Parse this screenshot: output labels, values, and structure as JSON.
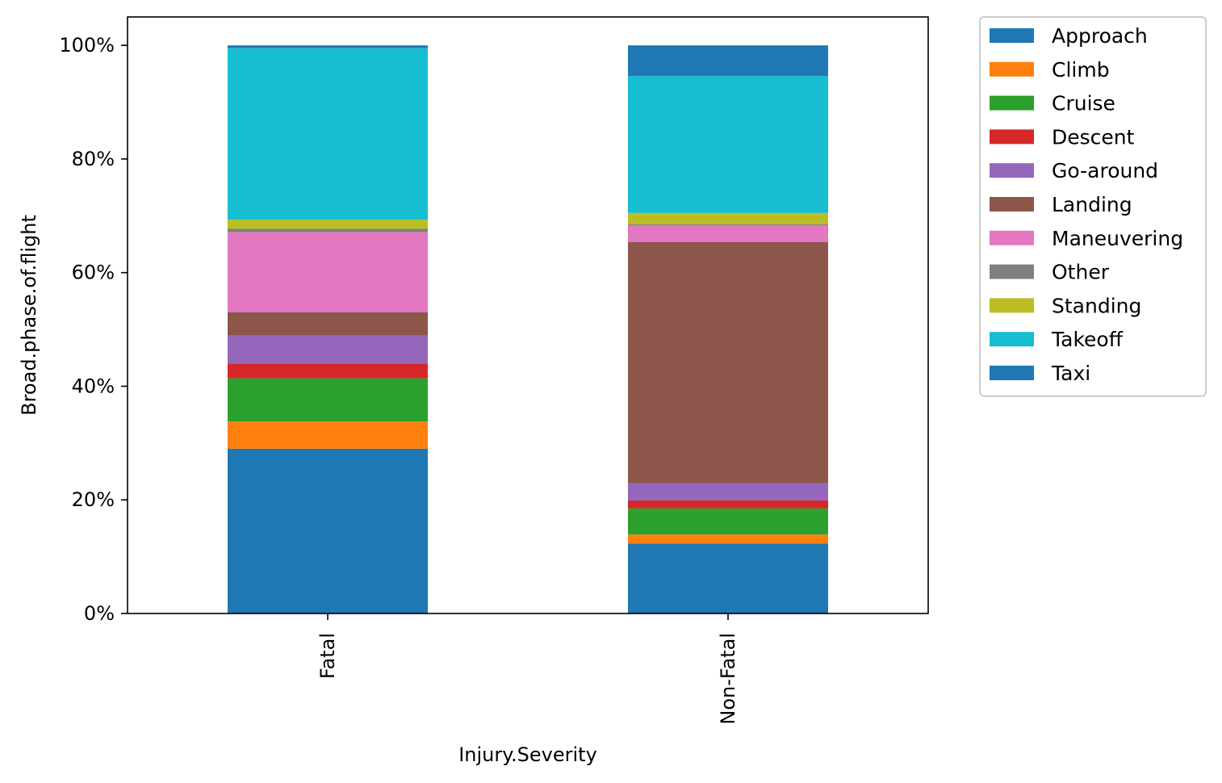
{
  "chart_data": {
    "type": "bar",
    "stacked": true,
    "orientation": "vertical",
    "xlabel": "Injury.Severity",
    "ylabel": "Broad.phase.of.flight",
    "categories": [
      "Fatal",
      "Non-Fatal"
    ],
    "y_axis": {
      "ylim": [
        0,
        105
      ],
      "ticks": [
        0,
        20,
        40,
        60,
        80,
        100
      ],
      "tick_suffix": "%"
    },
    "grid": false,
    "legend_position": "outside-top-right",
    "series": [
      {
        "name": "Approach",
        "color": "#1f77b4",
        "values": [
          29.0,
          12.3
        ]
      },
      {
        "name": "Climb",
        "color": "#ff7f0e",
        "values": [
          4.8,
          1.6
        ]
      },
      {
        "name": "Cruise",
        "color": "#2ca02c",
        "values": [
          7.6,
          4.6
        ]
      },
      {
        "name": "Descent",
        "color": "#d62728",
        "values": [
          2.6,
          1.4
        ]
      },
      {
        "name": "Go-around",
        "color": "#9467bd",
        "values": [
          4.9,
          3.0
        ]
      },
      {
        "name": "Landing",
        "color": "#8c564b",
        "values": [
          4.1,
          42.5
        ]
      },
      {
        "name": "Maneuvering",
        "color": "#e377c2",
        "values": [
          14.1,
          2.9
        ]
      },
      {
        "name": "Other",
        "color": "#7f7f7f",
        "values": [
          0.6,
          0.2
        ]
      },
      {
        "name": "Standing",
        "color": "#bcbd22",
        "values": [
          1.6,
          2.0
        ]
      },
      {
        "name": "Takeoff",
        "color": "#17becf",
        "values": [
          30.2,
          24.1
        ]
      },
      {
        "name": "Taxi",
        "color": "#1f77b4",
        "values": [
          0.5,
          5.4
        ]
      }
    ]
  }
}
